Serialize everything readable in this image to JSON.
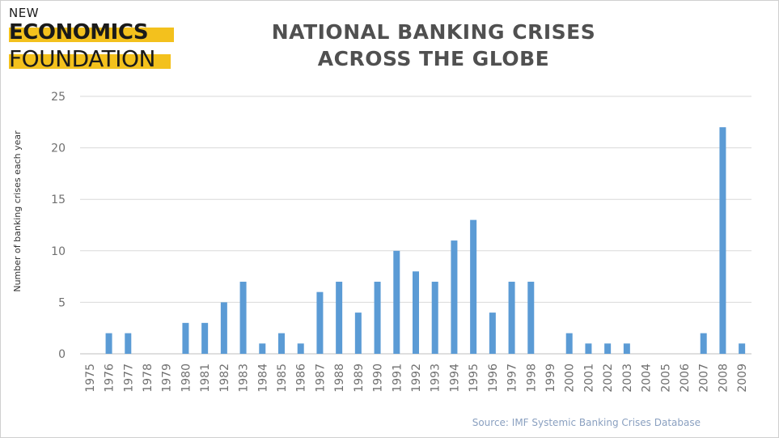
{
  "logo": {
    "line1": "NEW",
    "line2": "ECONOMICS",
    "line3": "FOUNDATION"
  },
  "chart_data": {
    "type": "bar",
    "title": "NATIONAL BANKING CRISES ACROSS THE GLOBE",
    "title_lines": [
      "NATIONAL BANKING CRISES",
      "ACROSS THE GLOBE"
    ],
    "xlabel": "",
    "ylabel": "Number of banking crises each year",
    "ylim": [
      0,
      25
    ],
    "yticks": [
      0,
      5,
      10,
      15,
      20,
      25
    ],
    "grid": true,
    "legend": "none",
    "color": "#5b9bd5",
    "categories": [
      "1975",
      "1976",
      "1977",
      "1978",
      "1979",
      "1980",
      "1981",
      "1982",
      "1983",
      "1984",
      "1985",
      "1986",
      "1987",
      "1988",
      "1989",
      "1990",
      "1991",
      "1992",
      "1993",
      "1994",
      "1995",
      "1996",
      "1997",
      "1998",
      "1999",
      "2000",
      "2001",
      "2002",
      "2003",
      "2004",
      "2005",
      "2006",
      "2007",
      "2008",
      "2009"
    ],
    "values": [
      0,
      2,
      2,
      0,
      0,
      3,
      3,
      5,
      7,
      1,
      2,
      1,
      6,
      7,
      4,
      7,
      10,
      8,
      7,
      11,
      13,
      4,
      7,
      7,
      0,
      2,
      1,
      1,
      1,
      0,
      0,
      0,
      2,
      22,
      1
    ],
    "source": "Source: IMF Systemic Banking Crises Database"
  }
}
